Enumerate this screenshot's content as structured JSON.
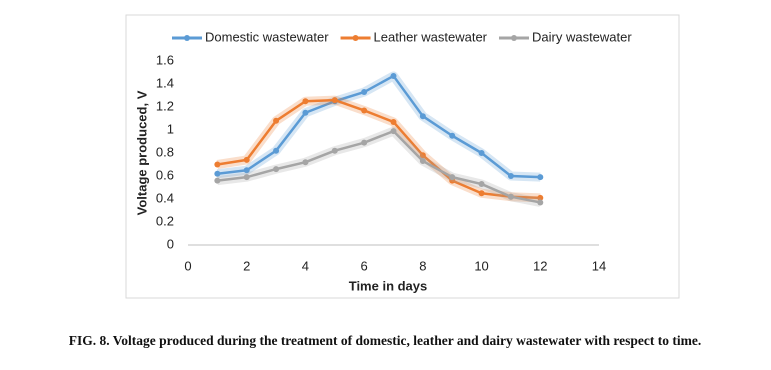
{
  "chart_data": {
    "type": "line",
    "x_label": "Time in days",
    "y_label": "Voltage produced, V",
    "x": [
      1,
      2,
      3,
      4,
      5,
      6,
      7,
      8,
      9,
      10,
      11,
      12
    ],
    "series": [
      {
        "name": "Domestic wastewater",
        "color": "#5b9bd5",
        "values": [
          0.62,
          0.65,
          0.82,
          1.15,
          1.25,
          1.33,
          1.47,
          1.12,
          0.95,
          0.8,
          0.6,
          0.59
        ]
      },
      {
        "name": "Leather wastewater",
        "color": "#ed7d31",
        "values": [
          0.7,
          0.74,
          1.08,
          1.25,
          1.26,
          1.17,
          1.07,
          0.78,
          0.56,
          0.45,
          0.42,
          0.41
        ]
      },
      {
        "name": "Dairy wastewater",
        "color": "#a5a5a5",
        "values": [
          0.56,
          0.59,
          0.66,
          0.72,
          0.82,
          0.89,
          0.99,
          0.73,
          0.59,
          0.53,
          0.42,
          0.37
        ]
      }
    ],
    "xlim": [
      0,
      14
    ],
    "xticks": [
      0,
      2,
      4,
      6,
      8,
      10,
      12,
      14
    ],
    "ylim": [
      0,
      1.6
    ],
    "yticks": [
      0,
      0.2,
      0.4,
      0.6,
      0.8,
      1,
      1.2,
      1.4,
      1.6
    ],
    "legend": "top"
  },
  "caption": "FIG. 8. Voltage produced during the treatment of domestic, leather and dairy wastewater with respect to time."
}
